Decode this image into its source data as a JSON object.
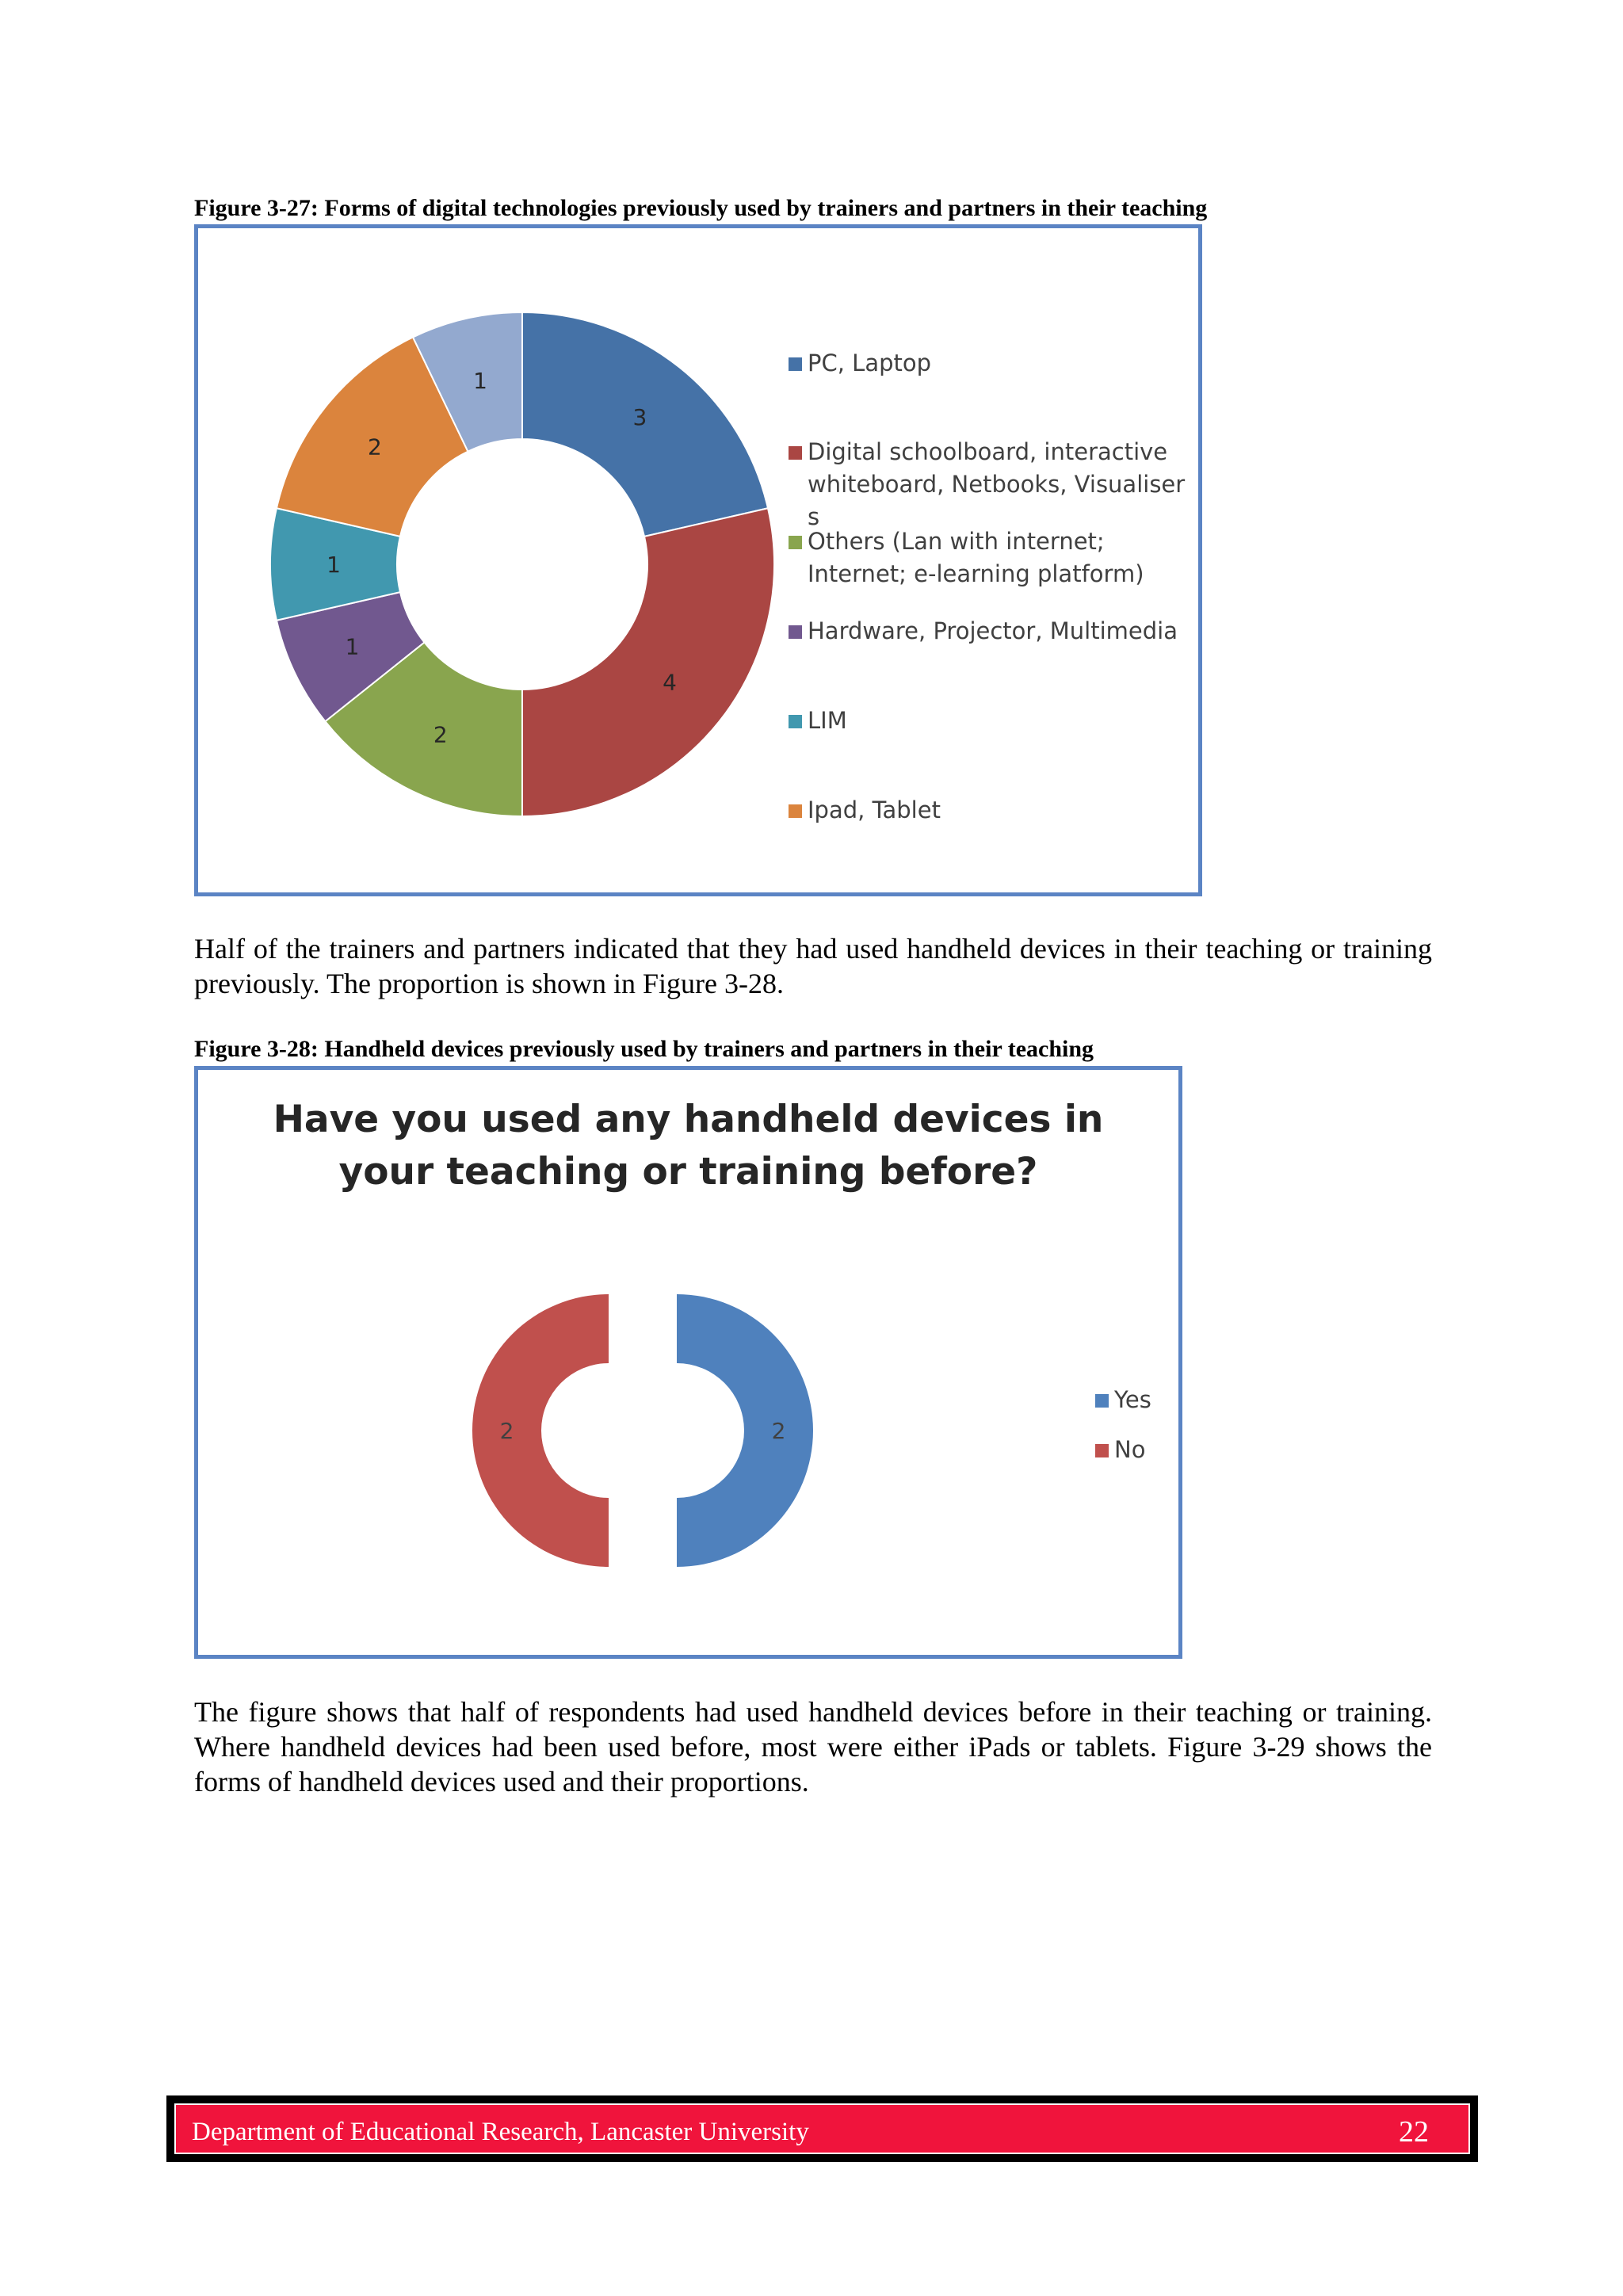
{
  "figure27": {
    "caption": "Figure 3-27: Forms of digital technologies previously used by trainers and partners in their teaching",
    "chart_data": {
      "type": "pie",
      "variant": "doughnut",
      "categories": [
        "PC, Laptop",
        "Digital schoolboard, interactive whiteboard, Netbooks, Visualisers",
        "Others (Lan with internet; Internet; e-learning platform)",
        "Hardware, Projector, Multimedia",
        "LIM",
        "Ipad, Tablet",
        ""
      ],
      "values": [
        3,
        4,
        2,
        1,
        1,
        2,
        1
      ],
      "data_labels": [
        "3",
        "4",
        "2",
        "1",
        "1",
        "2",
        "1"
      ],
      "colors": [
        "#4572a7",
        "#aa4643",
        "#89a54e",
        "#71588f",
        "#4198af",
        "#db843d",
        "#93a9cf"
      ],
      "legend_position": "right"
    },
    "legend": [
      {
        "lines": [
          "PC, Laptop"
        ],
        "color": "#4572a7"
      },
      {
        "lines": [
          "Digital schoolboard, interactive",
          "whiteboard, Netbooks, Visualiser",
          "s"
        ],
        "color": "#aa4643"
      },
      {
        "lines": [
          "Others (Lan with internet;",
          "Internet; e-learning platform)"
        ],
        "color": "#89a54e"
      },
      {
        "lines": [
          "Hardware, Projector, Multimedia"
        ],
        "color": "#71588f"
      },
      {
        "lines": [
          "LIM"
        ],
        "color": "#4198af"
      },
      {
        "lines": [
          "Ipad, Tablet"
        ],
        "color": "#db843d"
      }
    ]
  },
  "paragraph1": "Half of the trainers and partners indicated that they had used handheld devices in their teaching or training previously. The proportion is shown in Figure 3-28.",
  "figure28": {
    "caption": "Figure 3-28: Handheld devices previously used by trainers and partners in their teaching",
    "chart_data": {
      "type": "pie",
      "variant": "exploded doughnut",
      "title_lines": [
        "Have you used any handheld devices in",
        "your teaching or training before?"
      ],
      "categories": [
        "Yes",
        "No"
      ],
      "values": [
        2,
        2
      ],
      "data_labels": [
        "2",
        "2"
      ],
      "colors": [
        "#4f81bd",
        "#c0504d"
      ],
      "legend_position": "right"
    }
  },
  "paragraph2": "The figure shows that half of respondents had used handheld devices before in their teaching or training. Where handheld devices had been used before, most were either iPads or tablets. Figure 3-29 shows the forms of handheld devices used and their proportions.",
  "footer": {
    "department": "Department of Educational Research, Lancaster University",
    "page_number": "22"
  }
}
